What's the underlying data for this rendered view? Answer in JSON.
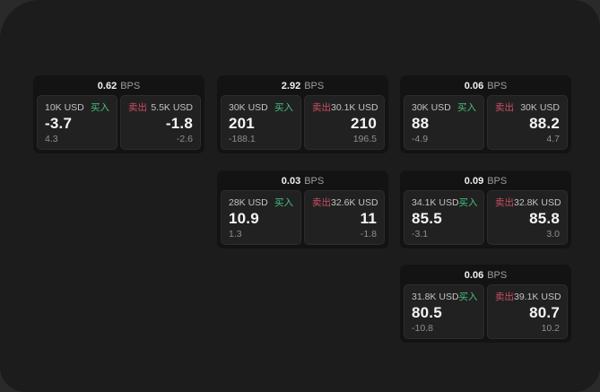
{
  "labels": {
    "bps": "BPS",
    "buy": "买入",
    "sell": "卖出"
  },
  "colors": {
    "buy_green": "#45c17f",
    "sell_red": "#cc4d63",
    "panel_bg": "#1c1c1c",
    "card_bg": "#131313",
    "tile_bg": "#212121"
  },
  "cards": [
    {
      "bps": "0.62",
      "buy": {
        "amount": "10K USD",
        "main": "-3.7",
        "sub": "4.3"
      },
      "sell": {
        "amount": "5.5K USD",
        "main": "-1.8",
        "sub": "-2.6"
      }
    },
    {
      "bps": "2.92",
      "buy": {
        "amount": "30K USD",
        "main": "201",
        "sub": "-188.1"
      },
      "sell": {
        "amount": "30.1K USD",
        "main": "210",
        "sub": "196.5"
      }
    },
    {
      "bps": "0.06",
      "buy": {
        "amount": "30K USD",
        "main": "88",
        "sub": "-4.9"
      },
      "sell": {
        "amount": "30K USD",
        "main": "88.2",
        "sub": "4.7"
      }
    },
    {
      "bps": "0.03",
      "buy": {
        "amount": "28K USD",
        "main": "10.9",
        "sub": "1.3"
      },
      "sell": {
        "amount": "32.6K USD",
        "main": "11",
        "sub": "-1.8"
      }
    },
    {
      "bps": "0.09",
      "buy": {
        "amount": "34.1K USD",
        "main": "85.5",
        "sub": "-3.1"
      },
      "sell": {
        "amount": "32.8K USD",
        "main": "85.8",
        "sub": "3.0"
      }
    },
    {
      "bps": "0.06",
      "buy": {
        "amount": "31.8K USD",
        "main": "80.5",
        "sub": "-10.8"
      },
      "sell": {
        "amount": "39.1K USD",
        "main": "80.7",
        "sub": "10.2"
      }
    }
  ]
}
